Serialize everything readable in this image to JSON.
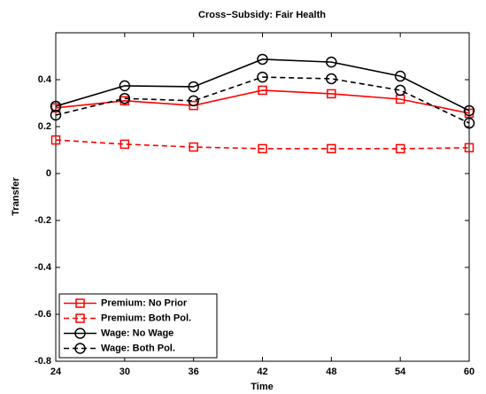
{
  "chart_data": {
    "type": "line",
    "title": "Cross−Subsidy: Fair Health",
    "x_label": "Time",
    "y_label": "Transfer",
    "x": [
      24,
      30,
      36,
      42,
      48,
      54,
      60
    ],
    "xlim": [
      24,
      60
    ],
    "xticks": [
      24,
      30,
      36,
      42,
      48,
      54,
      60
    ],
    "ylim": [
      -0.8,
      0.6
    ],
    "yticks": [
      -0.8,
      -0.6,
      -0.4,
      -0.2,
      0,
      0.2,
      0.4
    ],
    "grid": false,
    "legend_position": "lower-left",
    "series": [
      {
        "name": "Premium: No Prior",
        "color": "#ff0000",
        "linestyle": "solid",
        "marker": "square",
        "values": [
          0.28,
          0.31,
          0.29,
          0.355,
          0.34,
          0.317,
          0.257
        ]
      },
      {
        "name": "Premium: Both Pol.",
        "color": "#ff0000",
        "linestyle": "dashed",
        "marker": "square",
        "values": [
          0.143,
          0.125,
          0.113,
          0.106,
          0.106,
          0.106,
          0.11
        ]
      },
      {
        "name": "Wage: No Wage",
        "color": "#000000",
        "linestyle": "solid",
        "marker": "circle",
        "values": [
          0.287,
          0.374,
          0.37,
          0.487,
          0.475,
          0.415,
          0.268
        ]
      },
      {
        "name": "Wage: Both Pol.",
        "color": "#000000",
        "linestyle": "dashed",
        "marker": "circle",
        "values": [
          0.249,
          0.32,
          0.31,
          0.411,
          0.404,
          0.355,
          0.215
        ]
      }
    ]
  }
}
